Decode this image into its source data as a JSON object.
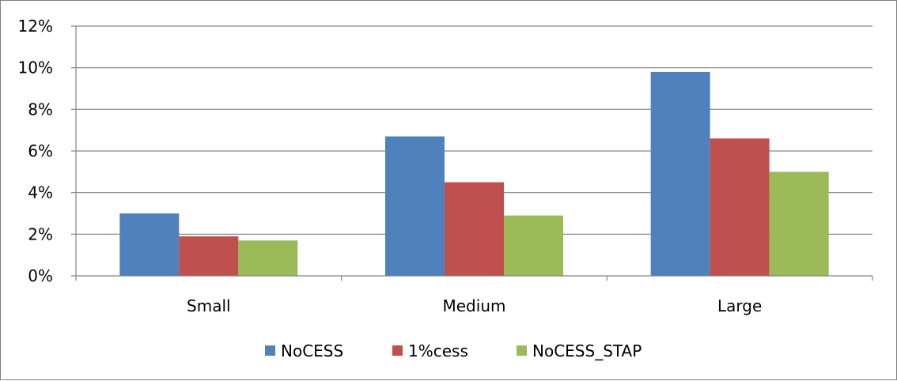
{
  "chart_data": {
    "type": "bar",
    "title": "",
    "xlabel": "",
    "ylabel": "",
    "categories": [
      "Small",
      "Medium",
      "Large"
    ],
    "series": [
      {
        "name": "NoCESS",
        "values": [
          0.03,
          0.067,
          0.098
        ]
      },
      {
        "name": "1%cess",
        "values": [
          0.019,
          0.045,
          0.066
        ]
      },
      {
        "name": "NoCESS_STAP",
        "values": [
          0.017,
          0.029,
          0.05
        ]
      }
    ],
    "ylim": [
      0,
      0.12
    ],
    "yticks": [
      0,
      0.02,
      0.04,
      0.06,
      0.08,
      0.1,
      0.12
    ],
    "ytick_labels": [
      "0%",
      "2%",
      "4%",
      "6%",
      "8%",
      "10%",
      "12%"
    ],
    "grid": true,
    "legend_position": "bottom",
    "colors": [
      "#4f81bd",
      "#c0504d",
      "#9bbb59"
    ]
  }
}
